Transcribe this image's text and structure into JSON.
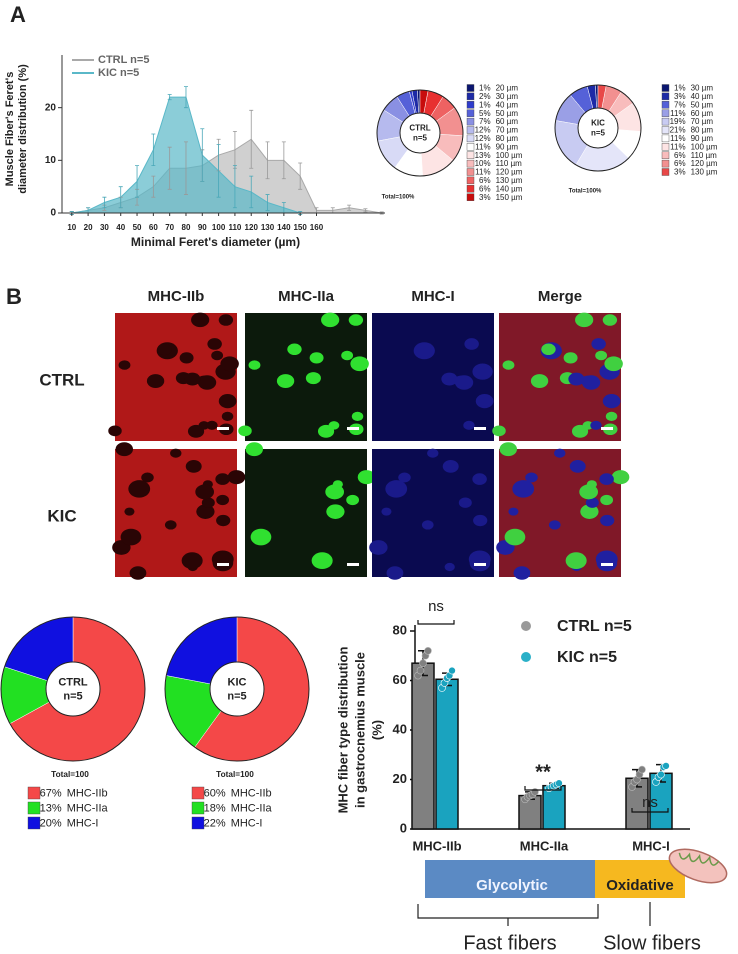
{
  "panels": [
    "A",
    "B"
  ],
  "micrographs": {
    "columns": [
      "MHC-IIb",
      "MHC-IIa",
      "MHC-I",
      "Merge"
    ],
    "rows": [
      "CTRL",
      "KIC"
    ]
  },
  "fiber_types": {
    "glycolytic": "Glycolytic",
    "oxidative": "Oxidative",
    "fast": "Fast fibers",
    "slow": "Slow fibers"
  },
  "chart_data": [
    {
      "type": "area",
      "ylabel": [
        "Muscle Fiber's Feret's",
        "diameter distribution (%)"
      ],
      "xlabel": "Minimal Feret's diameter (µm)",
      "x": [
        10,
        20,
        30,
        40,
        50,
        60,
        70,
        80,
        90,
        100,
        110,
        120,
        130,
        140,
        150,
        160,
        170,
        180,
        190,
        200
      ],
      "xlim": [
        4,
        202
      ],
      "xticks": [
        10,
        20,
        30,
        40,
        50,
        60,
        70,
        80,
        90,
        100,
        110,
        120,
        130,
        140,
        150,
        160
      ],
      "ylim": [
        0,
        30
      ],
      "yticks": [
        0,
        10,
        20
      ],
      "series": [
        {
          "name": "CTRL  n=5",
          "color": "#a9a9a9",
          "values": [
            0,
            0.5,
            1,
            2,
            3,
            5,
            8.5,
            8.5,
            9,
            11,
            12,
            14,
            10,
            10,
            7,
            0.5,
            0.5,
            1,
            0.5,
            0
          ],
          "errors": [
            0.3,
            0.5,
            0.5,
            1,
            1.5,
            2,
            4,
            5,
            3,
            3,
            3.5,
            5.5,
            3.5,
            3.5,
            2.5,
            0.5,
            0.5,
            0.5,
            0.3,
            0.2
          ]
        },
        {
          "name": "KIC  n=5",
          "color": "#5ab8c8",
          "values": [
            0,
            0.5,
            2,
            3,
            6,
            12,
            22,
            22,
            11,
            8,
            5,
            4,
            2,
            1,
            0,
            0,
            0,
            0,
            0,
            0
          ],
          "errors": [
            0.3,
            0.5,
            1,
            2,
            3,
            3,
            0.5,
            2,
            5,
            5,
            4,
            3,
            1.5,
            1,
            0.3,
            0,
            0,
            0,
            0,
            0
          ]
        }
      ]
    },
    {
      "type": "pie",
      "direction": "counterclockwise",
      "center_title": "CTRL",
      "center_subtitle": "n=5",
      "note": "Total=100%",
      "categories": [
        "20 µm",
        "30 µm",
        "40 µm",
        "50 µm",
        "60 µm",
        "70 µm",
        "80 µm",
        "90 µm",
        "100 µm",
        "110 µm",
        "120 µm",
        "130 µm",
        "140 µm",
        "150 µm"
      ],
      "values": [
        1,
        2,
        1,
        5,
        7,
        12,
        12,
        11,
        13,
        10,
        11,
        6,
        6,
        3
      ],
      "value_labels": [
        "1%",
        "2%",
        "1%",
        "5%",
        "7%",
        "12%",
        "12%",
        "11%",
        "13%",
        "10%",
        "11%",
        "6%",
        "6%",
        "3%"
      ],
      "colors": [
        "#0b1670",
        "#1d2aa6",
        "#2f3ccc",
        "#5561d8",
        "#8a90e3",
        "#b6baee",
        "#d8daf6",
        "#ffffff",
        "#fde4e4",
        "#f8bcbc",
        "#f29090",
        "#ee6262",
        "#e83030",
        "#c80c0c"
      ]
    },
    {
      "type": "pie",
      "direction": "counterclockwise",
      "center_title": "KIC",
      "center_subtitle": "n=5",
      "note": "Total=100%",
      "categories": [
        "30 µm",
        "40 µm",
        "50 µm",
        "60 µm",
        "70 µm",
        "80 µm",
        "90 µm",
        "100 µm",
        "110 µm",
        "120 µm",
        "130 µm"
      ],
      "values": [
        1,
        3,
        7,
        11,
        19,
        21,
        11,
        11,
        6,
        6,
        3
      ],
      "value_labels": [
        "1%",
        "3%",
        "7%",
        "11%",
        "19%",
        "21%",
        "11%",
        "11%",
        "6%",
        "6%",
        "3%"
      ],
      "colors": [
        "#0b1670",
        "#1d2aa6",
        "#5561d8",
        "#9a9fe6",
        "#c8cbf2",
        "#e4e5f9",
        "#ffffff",
        "#fde4e4",
        "#f8bcbc",
        "#f29090",
        "#e84848"
      ]
    },
    {
      "type": "pie",
      "direction": "clockwise",
      "center_title": "CTRL",
      "center_subtitle": "n=5",
      "note": "Total=100",
      "categories": [
        "MHC-IIb",
        "MHC-IIa",
        "MHC-I"
      ],
      "values": [
        67,
        13,
        20
      ],
      "value_labels": [
        "67%",
        "13%",
        "20%"
      ],
      "colors": [
        "#f44848",
        "#22e022",
        "#1010e0"
      ]
    },
    {
      "type": "pie",
      "direction": "clockwise",
      "center_title": "KIC",
      "center_subtitle": "n=5",
      "note": "Total=100",
      "categories": [
        "MHC-IIb",
        "MHC-IIa",
        "MHC-I"
      ],
      "values": [
        60,
        18,
        22
      ],
      "value_labels": [
        "60%",
        "18%",
        "22%"
      ],
      "colors": [
        "#f44848",
        "#22e022",
        "#1010e0"
      ]
    },
    {
      "type": "bar",
      "ylabel": [
        "MHC fiber type distribution",
        "in gastrocnemius muscle",
        "(%)"
      ],
      "categories": [
        "MHC-IIb",
        "MHC-IIa",
        "MHC-I"
      ],
      "ylim": [
        0,
        80
      ],
      "yticks": [
        0,
        20,
        40,
        60,
        80
      ],
      "annotations": [
        "ns",
        "**",
        "ns"
      ],
      "series": [
        {
          "name": "CTRL n=5",
          "color": "#808080",
          "values": [
            67,
            13.5,
            20.5
          ],
          "errors": [
            5,
            1.5,
            3.5
          ],
          "points": [
            [
              62,
              64,
              67,
              70,
              72
            ],
            [
              12,
              13,
              13.5,
              14,
              15
            ],
            [
              17,
              19,
              20,
              22,
              24
            ]
          ]
        },
        {
          "name": "KIC n=5",
          "color": "#1aa3bf",
          "values": [
            60.5,
            17.5,
            22.5
          ],
          "errors": [
            2.5,
            1,
            3.5
          ],
          "points": [
            [
              57,
              59,
              61,
              62,
              64
            ],
            [
              16.5,
              17,
              17.5,
              18,
              18.5
            ],
            [
              19,
              21,
              22,
              25,
              25.5
            ]
          ]
        }
      ]
    }
  ]
}
